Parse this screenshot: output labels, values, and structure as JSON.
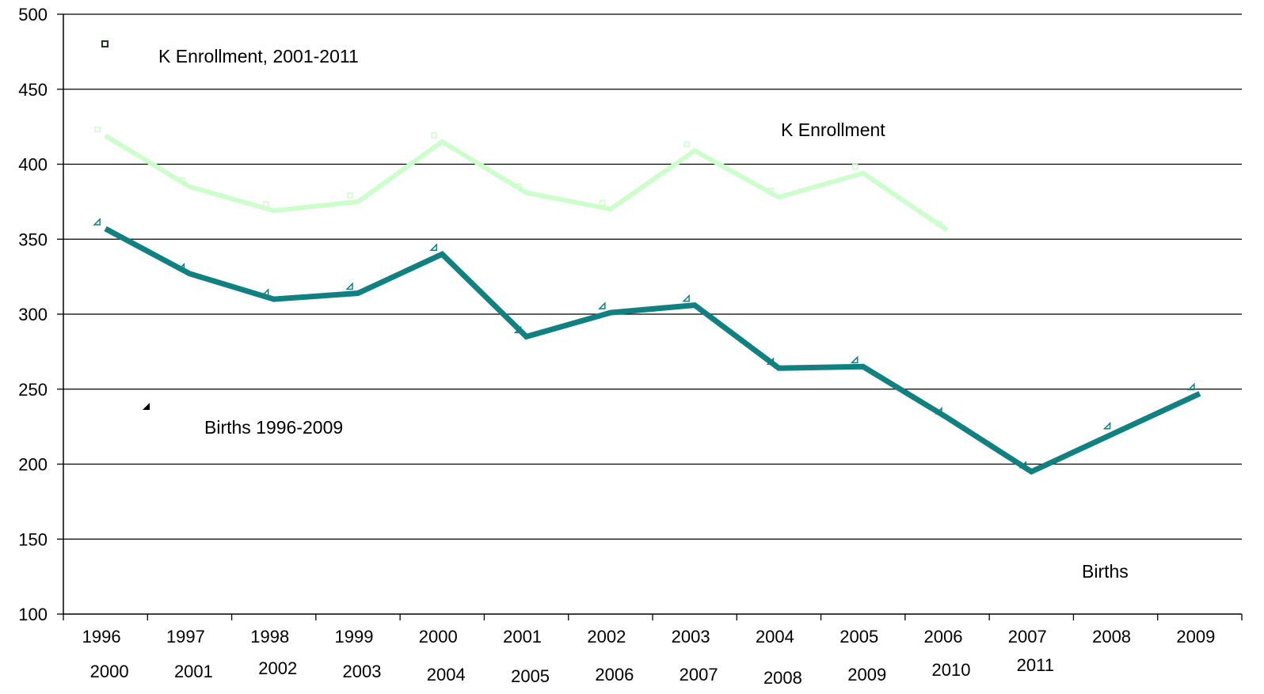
{
  "chart_data": {
    "type": "line",
    "x_primary": [
      "1996",
      "1997",
      "1998",
      "1999",
      "2000",
      "2001",
      "2002",
      "2003",
      "2004",
      "2005",
      "2006",
      "2007",
      "2008",
      "2009"
    ],
    "x_secondary": [
      "2000",
      "2001",
      "2002",
      "2003",
      "2004",
      "2005",
      "2006",
      "2007",
      "2008",
      "2009",
      "2010",
      "2011"
    ],
    "ylim": [
      100,
      500
    ],
    "yticks": [
      "100",
      "150",
      "200",
      "250",
      "300",
      "350",
      "400",
      "450",
      "500"
    ],
    "grid": true,
    "series": [
      {
        "name": "K Enrollment",
        "color": "#ccffcc",
        "marker": "square",
        "values": [
          419,
          385,
          369,
          375,
          415,
          381,
          370,
          409,
          378,
          394,
          356
        ]
      },
      {
        "name": "Births",
        "color": "#108080",
        "marker": "triangle",
        "values": [
          357,
          327,
          310,
          314,
          340,
          285,
          301,
          306,
          264,
          265,
          231,
          195,
          221,
          247
        ]
      }
    ],
    "annotations": {
      "enrollment_legend": "K Enrollment, 2001-2011",
      "births_legend": "Births 1996-2009",
      "enrollment_label": "K Enrollment",
      "births_label": "Births"
    }
  }
}
